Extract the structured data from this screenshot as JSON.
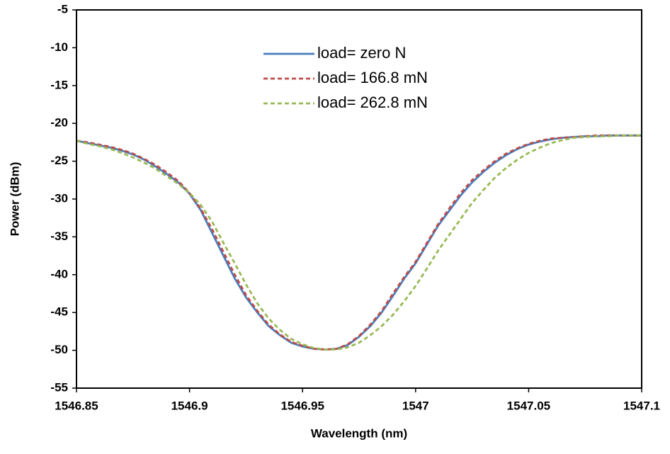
{
  "chart_data": {
    "type": "line",
    "x_label": "Wavelength (nm)",
    "y_label": "Power (dBm)",
    "xlim": [
      1546.85,
      1547.1
    ],
    "xticks": [
      1546.85,
      1546.9,
      1546.95,
      1547,
      1547.05,
      1547.1
    ],
    "ylim": [
      -55,
      -5
    ],
    "yticks": [
      -5,
      -10,
      -15,
      -20,
      -25,
      -30,
      -35,
      -40,
      -45,
      -50,
      -55
    ],
    "grid": false,
    "legend": "upper center",
    "x": [
      1546.85,
      1546.855,
      1546.86,
      1546.865,
      1546.87,
      1546.875,
      1546.88,
      1546.885,
      1546.89,
      1546.895,
      1546.9,
      1546.905,
      1546.91,
      1546.915,
      1546.92,
      1546.925,
      1546.93,
      1546.935,
      1546.94,
      1546.945,
      1546.95,
      1546.955,
      1546.96,
      1546.965,
      1546.97,
      1546.975,
      1546.98,
      1546.985,
      1546.99,
      1546.995,
      1547.0,
      1547.005,
      1547.01,
      1547.015,
      1547.02,
      1547.025,
      1547.03,
      1547.035,
      1547.04,
      1547.045,
      1547.05,
      1547.055,
      1547.06,
      1547.065,
      1547.07,
      1547.075,
      1547.08,
      1547.085,
      1547.09,
      1547.095,
      1547.1
    ],
    "series": [
      {
        "name": "load= zero N",
        "color": "#4a7ebb",
        "dash": "solid",
        "values": [
          -22.3,
          -22.6,
          -22.9,
          -23.2,
          -23.6,
          -24.1,
          -24.8,
          -25.7,
          -26.7,
          -27.8,
          -29.3,
          -31.5,
          -34.5,
          -37.5,
          -40.5,
          -43,
          -45,
          -46.8,
          -48,
          -49,
          -49.5,
          -49.8,
          -49.9,
          -49.8,
          -49.3,
          -48.2,
          -46.8,
          -45,
          -42.8,
          -40.5,
          -38.5,
          -36,
          -33.5,
          -31.5,
          -29.5,
          -27.8,
          -26.4,
          -25.2,
          -24.2,
          -23.4,
          -22.8,
          -22.4,
          -22.1,
          -21.9,
          -21.8,
          -21.7,
          -21.7,
          -21.6,
          -21.6,
          -21.6,
          -21.6
        ]
      },
      {
        "name": "load= 166.8 mN",
        "color": "#be4b48",
        "dash": "dashed",
        "values": [
          -22.3,
          -22.5,
          -22.8,
          -23.1,
          -23.5,
          -24,
          -24.7,
          -25.5,
          -26.5,
          -27.6,
          -29.2,
          -31.3,
          -34,
          -37,
          -40,
          -42.7,
          -44.8,
          -46.6,
          -47.9,
          -48.9,
          -49.4,
          -49.8,
          -49.9,
          -49.8,
          -49.2,
          -48.1,
          -46.6,
          -44.8,
          -42.5,
          -40.3,
          -38.3,
          -35.8,
          -33.3,
          -31.2,
          -29.2,
          -27.5,
          -26.2,
          -25,
          -24,
          -23.3,
          -22.7,
          -22.3,
          -22,
          -21.9,
          -21.8,
          -21.7,
          -21.6,
          -21.6,
          -21.6,
          -21.6,
          -21.6
        ]
      },
      {
        "name": "load= 262.8 mN",
        "color": "#98b954",
        "dash": "dashed",
        "values": [
          -22.3,
          -22.7,
          -23,
          -23.4,
          -23.9,
          -24.5,
          -25.2,
          -26,
          -27,
          -28,
          -29.2,
          -30.8,
          -33,
          -35.8,
          -38.5,
          -41.3,
          -43.8,
          -45.8,
          -47.3,
          -48.5,
          -49.2,
          -49.7,
          -49.9,
          -49.9,
          -49.6,
          -49,
          -48,
          -46.8,
          -45.3,
          -43.5,
          -41.5,
          -39.2,
          -36.8,
          -34.7,
          -32.6,
          -30.5,
          -28.8,
          -27.2,
          -25.9,
          -24.8,
          -23.9,
          -23.2,
          -22.6,
          -22.2,
          -21.9,
          -21.8,
          -21.7,
          -21.7,
          -21.6,
          -21.6,
          -21.6
        ]
      }
    ]
  }
}
